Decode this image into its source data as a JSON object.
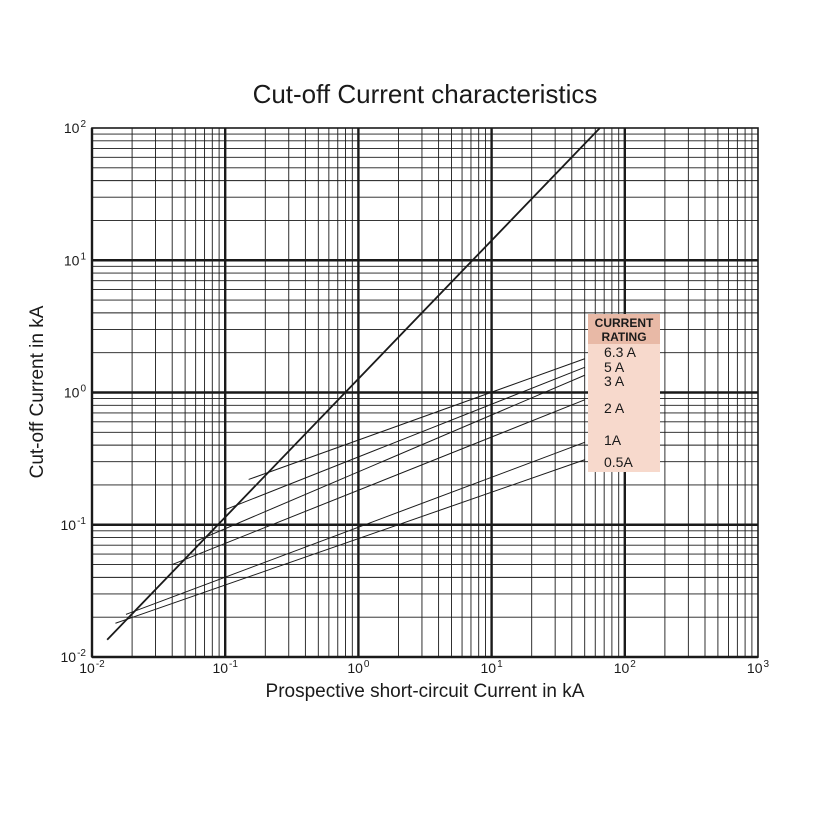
{
  "chart_data": {
    "type": "line",
    "title": "Cut-off Current characteristics",
    "xlabel": "Prospective short-circuit Current in kA",
    "ylabel": "Cut-off  Current  in  kA",
    "x_scale": "log",
    "y_scale": "log",
    "xlim": [
      0.01,
      1000
    ],
    "ylim": [
      0.01,
      100
    ],
    "x_ticks": [
      {
        "base": "10",
        "exp": "-2"
      },
      {
        "base": "10",
        "exp": "-1"
      },
      {
        "base": "10",
        "exp": "0"
      },
      {
        "base": "10",
        "exp": "1"
      },
      {
        "base": "10",
        "exp": "2"
      },
      {
        "base": "10",
        "exp": "3"
      }
    ],
    "y_ticks": [
      {
        "base": "10",
        "exp": "-2"
      },
      {
        "base": "10",
        "exp": "-1"
      },
      {
        "base": "10",
        "exp": "0"
      },
      {
        "base": "10",
        "exp": "1"
      },
      {
        "base": "10",
        "exp": "2"
      }
    ],
    "grid": true,
    "legend": {
      "header": [
        "CURRENT",
        "RATING"
      ],
      "placement": "right",
      "color": "#f7d9cc",
      "header_color": "#e8b9a6"
    },
    "series": [
      {
        "name": "6.3 A",
        "points": [
          [
            0.15,
            0.22
          ],
          [
            50,
            1.8
          ]
        ]
      },
      {
        "name": "5 A",
        "points": [
          [
            0.1,
            0.13
          ],
          [
            50,
            1.55
          ]
        ]
      },
      {
        "name": "3 A",
        "points": [
          [
            0.06,
            0.075
          ],
          [
            50,
            1.35
          ]
        ]
      },
      {
        "name": "2 A",
        "points": [
          [
            0.04,
            0.05
          ],
          [
            50,
            0.88
          ]
        ]
      },
      {
        "name": "1A",
        "points": [
          [
            0.018,
            0.021
          ],
          [
            50,
            0.42
          ]
        ]
      },
      {
        "name": "0.5A",
        "points": [
          [
            0.015,
            0.018
          ],
          [
            50,
            0.31
          ]
        ]
      }
    ],
    "peak_line": {
      "points": [
        [
          0.013,
          0.0135
        ],
        [
          65,
          100
        ]
      ]
    }
  }
}
